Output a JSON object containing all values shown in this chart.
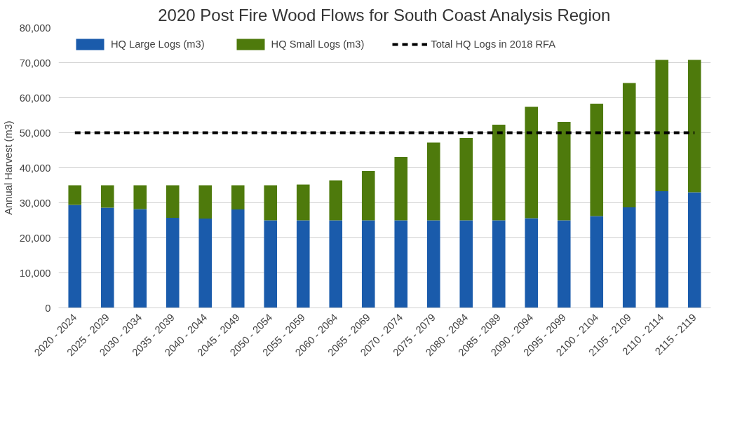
{
  "chart_data": {
    "type": "bar",
    "title": "2020 Post Fire Wood Flows for South Coast Analysis Region",
    "ylabel": "Annual Harvest (m3)",
    "categories": [
      "2020 - 2024",
      "2025 - 2029",
      "2030 - 2034",
      "2035 - 2039",
      "2040 - 2044",
      "2045 - 2049",
      "2050 - 2054",
      "2055 - 2059",
      "2060 - 2064",
      "2065 - 2069",
      "2070 - 2074",
      "2075 - 2079",
      "2080 - 2084",
      "2085 - 2089",
      "2090 - 2094",
      "2095 - 2099",
      "2100 - 2104",
      "2105 - 2109",
      "2110 - 2114",
      "2115 - 2119"
    ],
    "stacked": true,
    "series": [
      {
        "name": "HQ Large Logs (m3)",
        "color": "#1a5bab",
        "values": [
          29400,
          28600,
          28200,
          25700,
          25500,
          28100,
          25000,
          25000,
          25000,
          25000,
          25000,
          25000,
          25000,
          25000,
          25600,
          25000,
          26200,
          28700,
          33300,
          33000
        ]
      },
      {
        "name": "HQ Small Logs (m3)",
        "color": "#4e7a0c",
        "values": [
          5600,
          6400,
          6800,
          9300,
          9500,
          6900,
          10000,
          10200,
          11400,
          14100,
          18100,
          22200,
          23500,
          27300,
          31800,
          28100,
          32100,
          35500,
          37500,
          37800
        ]
      },
      {
        "name": "Total HQ Logs in 2018 RFA",
        "type": "line",
        "line_style": "dashed",
        "color": "#000000",
        "values": [
          50000,
          50000,
          50000,
          50000,
          50000,
          50000,
          50000,
          50000,
          50000,
          50000,
          50000,
          50000,
          50000,
          50000,
          50000,
          50000,
          50000,
          50000,
          50000,
          50000
        ]
      }
    ],
    "ylim": [
      0,
      80000
    ],
    "yticks": [
      {
        "value": 0,
        "label": "0"
      },
      {
        "value": 10000,
        "label": "10,000"
      },
      {
        "value": 20000,
        "label": "20,000"
      },
      {
        "value": 30000,
        "label": "30,000"
      },
      {
        "value": 40000,
        "label": "40,000"
      },
      {
        "value": 50000,
        "label": "50,000"
      },
      {
        "value": 60000,
        "label": "60,000"
      },
      {
        "value": 70000,
        "label": "70,000"
      },
      {
        "value": 80000,
        "label": "80,000"
      }
    ],
    "grid": "y",
    "legend": "top"
  }
}
